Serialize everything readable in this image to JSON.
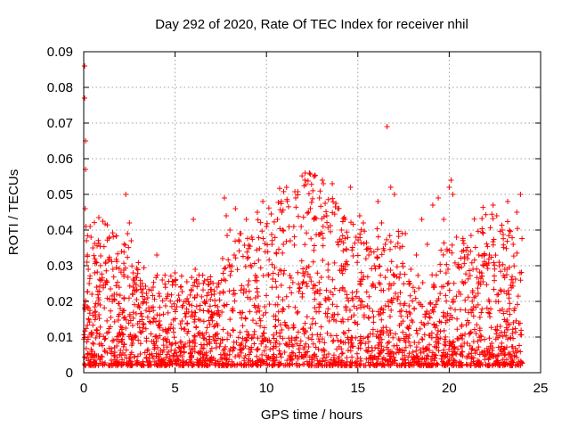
{
  "chart_data": {
    "type": "scatter",
    "title": "Day 292 of 2020, Rate Of TEC Index for receiver nhil",
    "xlabel": "GPS time / hours",
    "ylabel": "ROTI / TECUs",
    "xlim": [
      0,
      25
    ],
    "ylim": [
      0,
      0.09
    ],
    "x_ticks": [
      "0",
      "5",
      "10",
      "15",
      "20",
      "25"
    ],
    "y_ticks": [
      "0",
      "0.01",
      "0.02",
      "0.03",
      "0.04",
      "0.05",
      "0.06",
      "0.07",
      "0.08",
      "0.09"
    ],
    "grid": true,
    "legend": "none",
    "marker": "plus",
    "color": "#ff0000",
    "series": [
      {
        "x": [
          0.05,
          0.05,
          0.1,
          0.1,
          0.08,
          0.12,
          0.15,
          0.2,
          0.25,
          0.18,
          0.3,
          0.35,
          0.4,
          0.45,
          0.5,
          0.6,
          0.7,
          0.8,
          0.9,
          1.0,
          1.2,
          1.4,
          1.6,
          1.8,
          2.0,
          2.2,
          2.3,
          2.4,
          2.5,
          2.6,
          2.7,
          2.8,
          3.0,
          3.2,
          3.5,
          3.8,
          4.0,
          4.3,
          4.6,
          5.0,
          5.3,
          5.6,
          5.9,
          6.0,
          6.1,
          6.3,
          6.6,
          7.0,
          7.3,
          7.6,
          7.7,
          7.8,
          8.0,
          8.3,
          8.6,
          8.9,
          9.2,
          9.5,
          9.8,
          10.0,
          10.3,
          10.6,
          10.9,
          11.1,
          11.3,
          11.6,
          11.9,
          12.1,
          12.3,
          12.6,
          12.9,
          13.1,
          13.3,
          13.6,
          13.9,
          14.1,
          14.3,
          14.6,
          14.9,
          15.1,
          15.3,
          15.6,
          15.9,
          16.1,
          16.3,
          16.5,
          16.6,
          16.8,
          17.0,
          17.3,
          17.6,
          17.9,
          18.2,
          18.5,
          18.8,
          19.1,
          19.4,
          19.7,
          20.0,
          20.1,
          20.2,
          20.4,
          20.7,
          21.0,
          21.3,
          21.6,
          21.9,
          22.2,
          22.4,
          22.6,
          22.9,
          23.2,
          23.5,
          23.7,
          23.9
        ],
        "y": [
          0.086,
          0.077,
          0.065,
          0.057,
          0.046,
          0.041,
          0.037,
          0.033,
          0.029,
          0.031,
          0.025,
          0.041,
          0.038,
          0.022,
          0.035,
          0.028,
          0.024,
          0.021,
          0.019,
          0.026,
          0.031,
          0.038,
          0.029,
          0.022,
          0.018,
          0.027,
          0.05,
          0.039,
          0.042,
          0.037,
          0.028,
          0.023,
          0.019,
          0.025,
          0.021,
          0.024,
          0.033,
          0.026,
          0.022,
          0.028,
          0.024,
          0.02,
          0.023,
          0.043,
          0.029,
          0.025,
          0.02,
          0.017,
          0.024,
          0.032,
          0.049,
          0.044,
          0.04,
          0.046,
          0.039,
          0.043,
          0.038,
          0.045,
          0.048,
          0.041,
          0.036,
          0.043,
          0.04,
          0.052,
          0.037,
          0.049,
          0.041,
          0.054,
          0.045,
          0.043,
          0.049,
          0.041,
          0.044,
          0.053,
          0.046,
          0.04,
          0.043,
          0.052,
          0.038,
          0.044,
          0.042,
          0.033,
          0.03,
          0.048,
          0.042,
          0.036,
          0.069,
          0.052,
          0.05,
          0.035,
          0.039,
          0.029,
          0.033,
          0.043,
          0.036,
          0.047,
          0.049,
          0.043,
          0.052,
          0.054,
          0.05,
          0.038,
          0.034,
          0.032,
          0.029,
          0.025,
          0.03,
          0.033,
          0.047,
          0.044,
          0.04,
          0.048,
          0.036,
          0.045,
          0.05
        ]
      }
    ]
  }
}
